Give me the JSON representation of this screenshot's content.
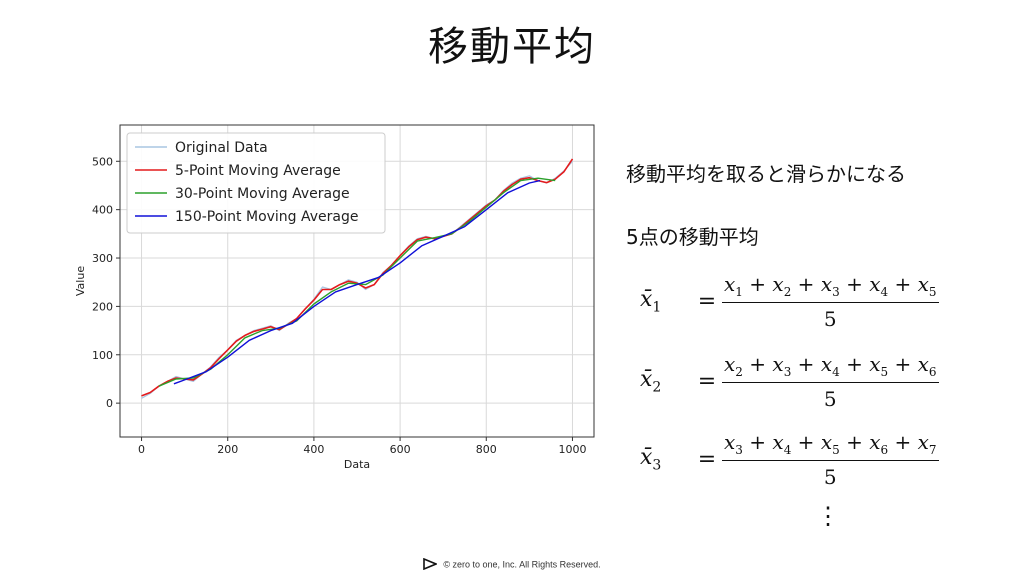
{
  "page": {
    "title": "移動平均",
    "description": "移動平均を取ると滑らかになる",
    "subtitle": "5点の移動平均",
    "footer": "©  zero to one, Inc. All Rights Reserved."
  },
  "formulas": [
    {
      "lhs": "x̄",
      "lhs_sub": "1",
      "terms": [
        "1",
        "2",
        "3",
        "4",
        "5"
      ],
      "denominator": "5"
    },
    {
      "lhs": "x̄",
      "lhs_sub": "2",
      "terms": [
        "2",
        "3",
        "4",
        "5",
        "6"
      ],
      "denominator": "5"
    },
    {
      "lhs": "x̄",
      "lhs_sub": "3",
      "terms": [
        "3",
        "4",
        "5",
        "6",
        "7"
      ],
      "denominator": "5"
    }
  ],
  "formula_symbols": {
    "var": "x",
    "plus": "+",
    "equals": "=",
    "ellipsis": "⋮"
  },
  "chart_data": {
    "type": "line",
    "xlabel": "Data",
    "ylabel": "Value",
    "xlim": [
      -50,
      1050
    ],
    "ylim": [
      -70,
      575
    ],
    "xticks": [
      0,
      200,
      400,
      600,
      800,
      1000
    ],
    "yticks": [
      0,
      100,
      200,
      300,
      400,
      500
    ],
    "grid": true,
    "legend_position": "top-left",
    "series": [
      {
        "name": "Original Data",
        "color": "#a8c6e2",
        "x": [
          0,
          20,
          40,
          60,
          80,
          100,
          120,
          140,
          160,
          180,
          200,
          220,
          240,
          260,
          280,
          300,
          320,
          340,
          360,
          380,
          400,
          420,
          440,
          460,
          480,
          500,
          520,
          540,
          560,
          580,
          600,
          620,
          640,
          660,
          680,
          700,
          720,
          740,
          760,
          780,
          800,
          820,
          840,
          860,
          880,
          900,
          920,
          940,
          960,
          980,
          1000
        ],
        "y": [
          10,
          20,
          35,
          45,
          55,
          50,
          45,
          60,
          75,
          95,
          110,
          130,
          140,
          150,
          155,
          160,
          150,
          165,
          175,
          195,
          215,
          240,
          235,
          245,
          255,
          250,
          235,
          245,
          270,
          285,
          305,
          325,
          340,
          345,
          340,
          345,
          350,
          365,
          380,
          395,
          410,
          420,
          440,
          455,
          465,
          470,
          460,
          455,
          465,
          480,
          500
        ]
      },
      {
        "name": "5-Point Moving Average",
        "color": "#e41a1c",
        "x": [
          0,
          20,
          40,
          60,
          80,
          100,
          120,
          140,
          160,
          180,
          200,
          220,
          240,
          260,
          280,
          300,
          320,
          340,
          360,
          380,
          400,
          420,
          440,
          460,
          480,
          500,
          520,
          540,
          560,
          580,
          600,
          620,
          640,
          660,
          680,
          700,
          720,
          740,
          760,
          780,
          800,
          820,
          840,
          860,
          880,
          900,
          920,
          940,
          960,
          980,
          1000
        ],
        "y": [
          15,
          22,
          35,
          45,
          52,
          50,
          48,
          60,
          73,
          92,
          110,
          128,
          140,
          148,
          153,
          158,
          152,
          163,
          175,
          195,
          213,
          235,
          235,
          245,
          252,
          248,
          238,
          245,
          268,
          285,
          305,
          323,
          338,
          343,
          340,
          345,
          350,
          363,
          378,
          393,
          408,
          420,
          438,
          452,
          463,
          466,
          460,
          456,
          463,
          478,
          505
        ]
      },
      {
        "name": "30-Point Moving Average",
        "color": "#2ca02c",
        "x": [
          40,
          80,
          120,
          160,
          200,
          240,
          280,
          320,
          360,
          400,
          440,
          480,
          520,
          560,
          600,
          640,
          680,
          720,
          760,
          800,
          840,
          880,
          920,
          960
        ],
        "y": [
          35,
          50,
          52,
          70,
          100,
          135,
          150,
          155,
          170,
          205,
          230,
          248,
          245,
          265,
          300,
          335,
          342,
          350,
          375,
          405,
          435,
          460,
          465,
          460
        ]
      },
      {
        "name": "150-Point Moving Average",
        "color": "#1010d8",
        "x": [
          75,
          100,
          150,
          200,
          250,
          300,
          350,
          400,
          450,
          500,
          550,
          600,
          650,
          700,
          750,
          800,
          850,
          900,
          925
        ],
        "y": [
          40,
          48,
          65,
          95,
          130,
          150,
          165,
          200,
          230,
          245,
          260,
          290,
          325,
          345,
          365,
          400,
          435,
          455,
          460
        ]
      }
    ]
  }
}
